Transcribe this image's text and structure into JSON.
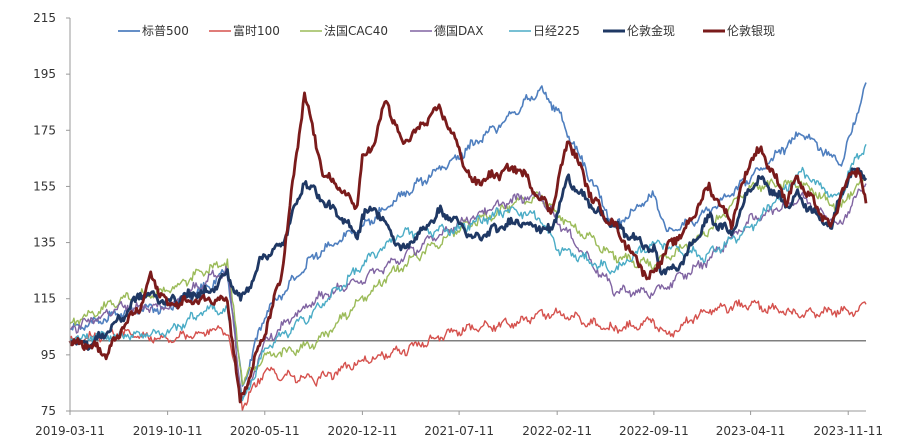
{
  "chart_data": {
    "type": "line",
    "ylim": [
      75,
      215
    ],
    "yticks": [
      75,
      95,
      115,
      135,
      155,
      175,
      195,
      215
    ],
    "xticks": [
      "2019-03-11",
      "2019-10-11",
      "2020-05-11",
      "2020-12-11",
      "2021-07-11",
      "2022-02-11",
      "2022-09-11",
      "2023-04-11",
      "2023-11-11"
    ],
    "x_range": [
      "2019-03-11",
      "2023-12-20"
    ],
    "reference_line": 100,
    "legend_position": "top",
    "series": [
      {
        "name": "标普500",
        "color": "#4f7fbf",
        "width": 1.6,
        "x": [
          "2019-03-11",
          "2019-07-01",
          "2019-10-11",
          "2020-01-15",
          "2020-02-19",
          "2020-03-23",
          "2020-05-11",
          "2020-09-01",
          "2020-12-11",
          "2021-03-01",
          "2021-07-11",
          "2021-11-01",
          "2022-01-03",
          "2022-02-11",
          "2022-06-16",
          "2022-09-11",
          "2022-10-12",
          "2023-01-01",
          "2023-04-11",
          "2023-07-31",
          "2023-10-27",
          "2023-11-11",
          "2023-12-20"
        ],
        "values": [
          104,
          110,
          112,
          120,
          125,
          83,
          110,
          131,
          141,
          151,
          166,
          180,
          190,
          182,
          141,
          152,
          138,
          145,
          158,
          174,
          163,
          171,
          192
        ]
      },
      {
        "name": "富时100",
        "color": "#d5514d",
        "width": 1.4,
        "x": [
          "2019-03-11",
          "2019-07-01",
          "2019-10-11",
          "2020-01-15",
          "2020-02-19",
          "2020-03-23",
          "2020-05-11",
          "2020-09-01",
          "2020-12-11",
          "2021-03-01",
          "2021-07-11",
          "2021-11-01",
          "2022-01-03",
          "2022-02-11",
          "2022-06-16",
          "2022-09-11",
          "2022-10-12",
          "2023-01-01",
          "2023-04-11",
          "2023-07-31",
          "2023-10-27",
          "2023-11-11",
          "2023-12-20"
        ],
        "values": [
          100,
          103,
          100,
          104,
          104,
          77,
          89,
          86,
          93,
          96,
          104,
          106,
          109,
          110,
          104,
          107,
          102,
          111,
          113,
          109,
          111,
          109,
          113
        ]
      },
      {
        "name": "法国CAC40",
        "color": "#9bbb59",
        "width": 1.4,
        "x": [
          "2019-03-11",
          "2019-07-01",
          "2019-10-11",
          "2020-01-15",
          "2020-02-19",
          "2020-03-23",
          "2020-05-11",
          "2020-09-01",
          "2020-12-11",
          "2021-03-01",
          "2021-07-11",
          "2021-11-01",
          "2022-01-03",
          "2022-02-11",
          "2022-06-16",
          "2022-09-11",
          "2022-10-12",
          "2023-01-01",
          "2023-04-11",
          "2023-07-31",
          "2023-10-27",
          "2023-11-11",
          "2023-12-20"
        ],
        "values": [
          106,
          115,
          118,
          126,
          128,
          86,
          94,
          99,
          115,
          126,
          140,
          148,
          152,
          145,
          130,
          127,
          130,
          138,
          155,
          156,
          147,
          152,
          158
        ]
      },
      {
        "name": "德国DAX",
        "color": "#8064a2",
        "width": 1.4,
        "x": [
          "2019-03-11",
          "2019-07-01",
          "2019-10-11",
          "2020-01-15",
          "2020-02-19",
          "2020-03-23",
          "2020-05-11",
          "2020-09-01",
          "2020-12-11",
          "2021-03-01",
          "2021-07-11",
          "2021-11-01",
          "2022-01-03",
          "2022-02-11",
          "2022-06-16",
          "2022-09-11",
          "2022-10-12",
          "2023-01-01",
          "2023-04-11",
          "2023-07-31",
          "2023-10-27",
          "2023-11-11",
          "2023-12-20"
        ],
        "values": [
          104,
          112,
          112,
          123,
          125,
          78,
          100,
          115,
          122,
          129,
          142,
          150,
          152,
          143,
          118,
          117,
          120,
          128,
          143,
          151,
          141,
          147,
          156
        ]
      },
      {
        "name": "日经225",
        "color": "#4bacc6",
        "width": 1.4,
        "x": [
          "2019-03-11",
          "2019-07-01",
          "2019-10-11",
          "2020-01-15",
          "2020-02-19",
          "2020-03-23",
          "2020-05-11",
          "2020-09-01",
          "2020-12-11",
          "2021-03-01",
          "2021-07-11",
          "2021-11-01",
          "2022-01-03",
          "2022-02-11",
          "2022-06-16",
          "2022-09-11",
          "2022-10-12",
          "2023-01-01",
          "2023-04-11",
          "2023-07-31",
          "2023-10-27",
          "2023-11-11",
          "2023-12-20"
        ],
        "values": [
          101,
          102,
          103,
          112,
          110,
          78,
          97,
          111,
          127,
          138,
          140,
          147,
          144,
          133,
          125,
          135,
          134,
          130,
          140,
          160,
          150,
          160,
          170
        ]
      },
      {
        "name": "伦敦金现",
        "color": "#1f3864",
        "width": 2.8,
        "x": [
          "2019-03-11",
          "2019-05-01",
          "2019-07-01",
          "2019-08-15",
          "2019-10-11",
          "2020-01-15",
          "2020-02-19",
          "2020-03-19",
          "2020-05-11",
          "2020-06-15",
          "2020-08-06",
          "2020-09-15",
          "2020-11-30",
          "2020-12-11",
          "2021-01-05",
          "2021-03-08",
          "2021-05-31",
          "2021-07-11",
          "2021-08-09",
          "2021-11-16",
          "2022-01-28",
          "2022-03-08",
          "2022-05-01",
          "2022-06-16",
          "2022-09-11",
          "2022-09-28",
          "2022-11-03",
          "2023-01-10",
          "2023-02-28",
          "2023-04-11",
          "2023-05-04",
          "2023-06-29",
          "2023-07-20",
          "2023-10-06",
          "2023-10-27",
          "2023-12-04",
          "2023-12-20"
        ],
        "values": [
          100,
          99,
          108,
          117,
          114,
          118,
          124,
          114,
          131,
          133,
          157,
          150,
          138,
          144,
          148,
          132,
          146,
          142,
          136,
          143,
          139,
          158,
          147,
          141,
          132,
          125,
          126,
          144,
          138,
          155,
          158,
          148,
          152,
          140,
          154,
          162,
          158
        ]
      },
      {
        "name": "伦敦银现",
        "color": "#7a1b1b",
        "width": 2.8,
        "x": [
          "2019-03-11",
          "2019-05-01",
          "2019-06-01",
          "2019-07-01",
          "2019-08-15",
          "2019-09-04",
          "2019-10-11",
          "2020-01-15",
          "2020-02-19",
          "2020-03-18",
          "2020-05-11",
          "2020-06-15",
          "2020-08-06",
          "2020-09-15",
          "2020-11-30",
          "2020-12-11",
          "2021-01-05",
          "2021-02-01",
          "2021-03-08",
          "2021-05-31",
          "2021-07-11",
          "2021-08-09",
          "2021-11-16",
          "2022-01-28",
          "2022-03-08",
          "2022-05-01",
          "2022-06-16",
          "2022-09-01",
          "2022-09-11",
          "2022-10-12",
          "2022-11-20",
          "2023-01-10",
          "2023-02-28",
          "2023-04-11",
          "2023-05-04",
          "2023-06-29",
          "2023-07-20",
          "2023-10-06",
          "2023-10-27",
          "2023-12-04",
          "2023-12-20"
        ],
        "values": [
          100,
          98,
          95,
          104,
          113,
          123,
          113,
          115,
          115,
          78,
          103,
          122,
          188,
          160,
          148,
          165,
          170,
          186,
          170,
          183,
          168,
          156,
          162,
          146,
          172,
          150,
          141,
          122,
          125,
          133,
          140,
          155,
          142,
          165,
          168,
          150,
          158,
          140,
          153,
          162,
          149
        ]
      }
    ]
  }
}
